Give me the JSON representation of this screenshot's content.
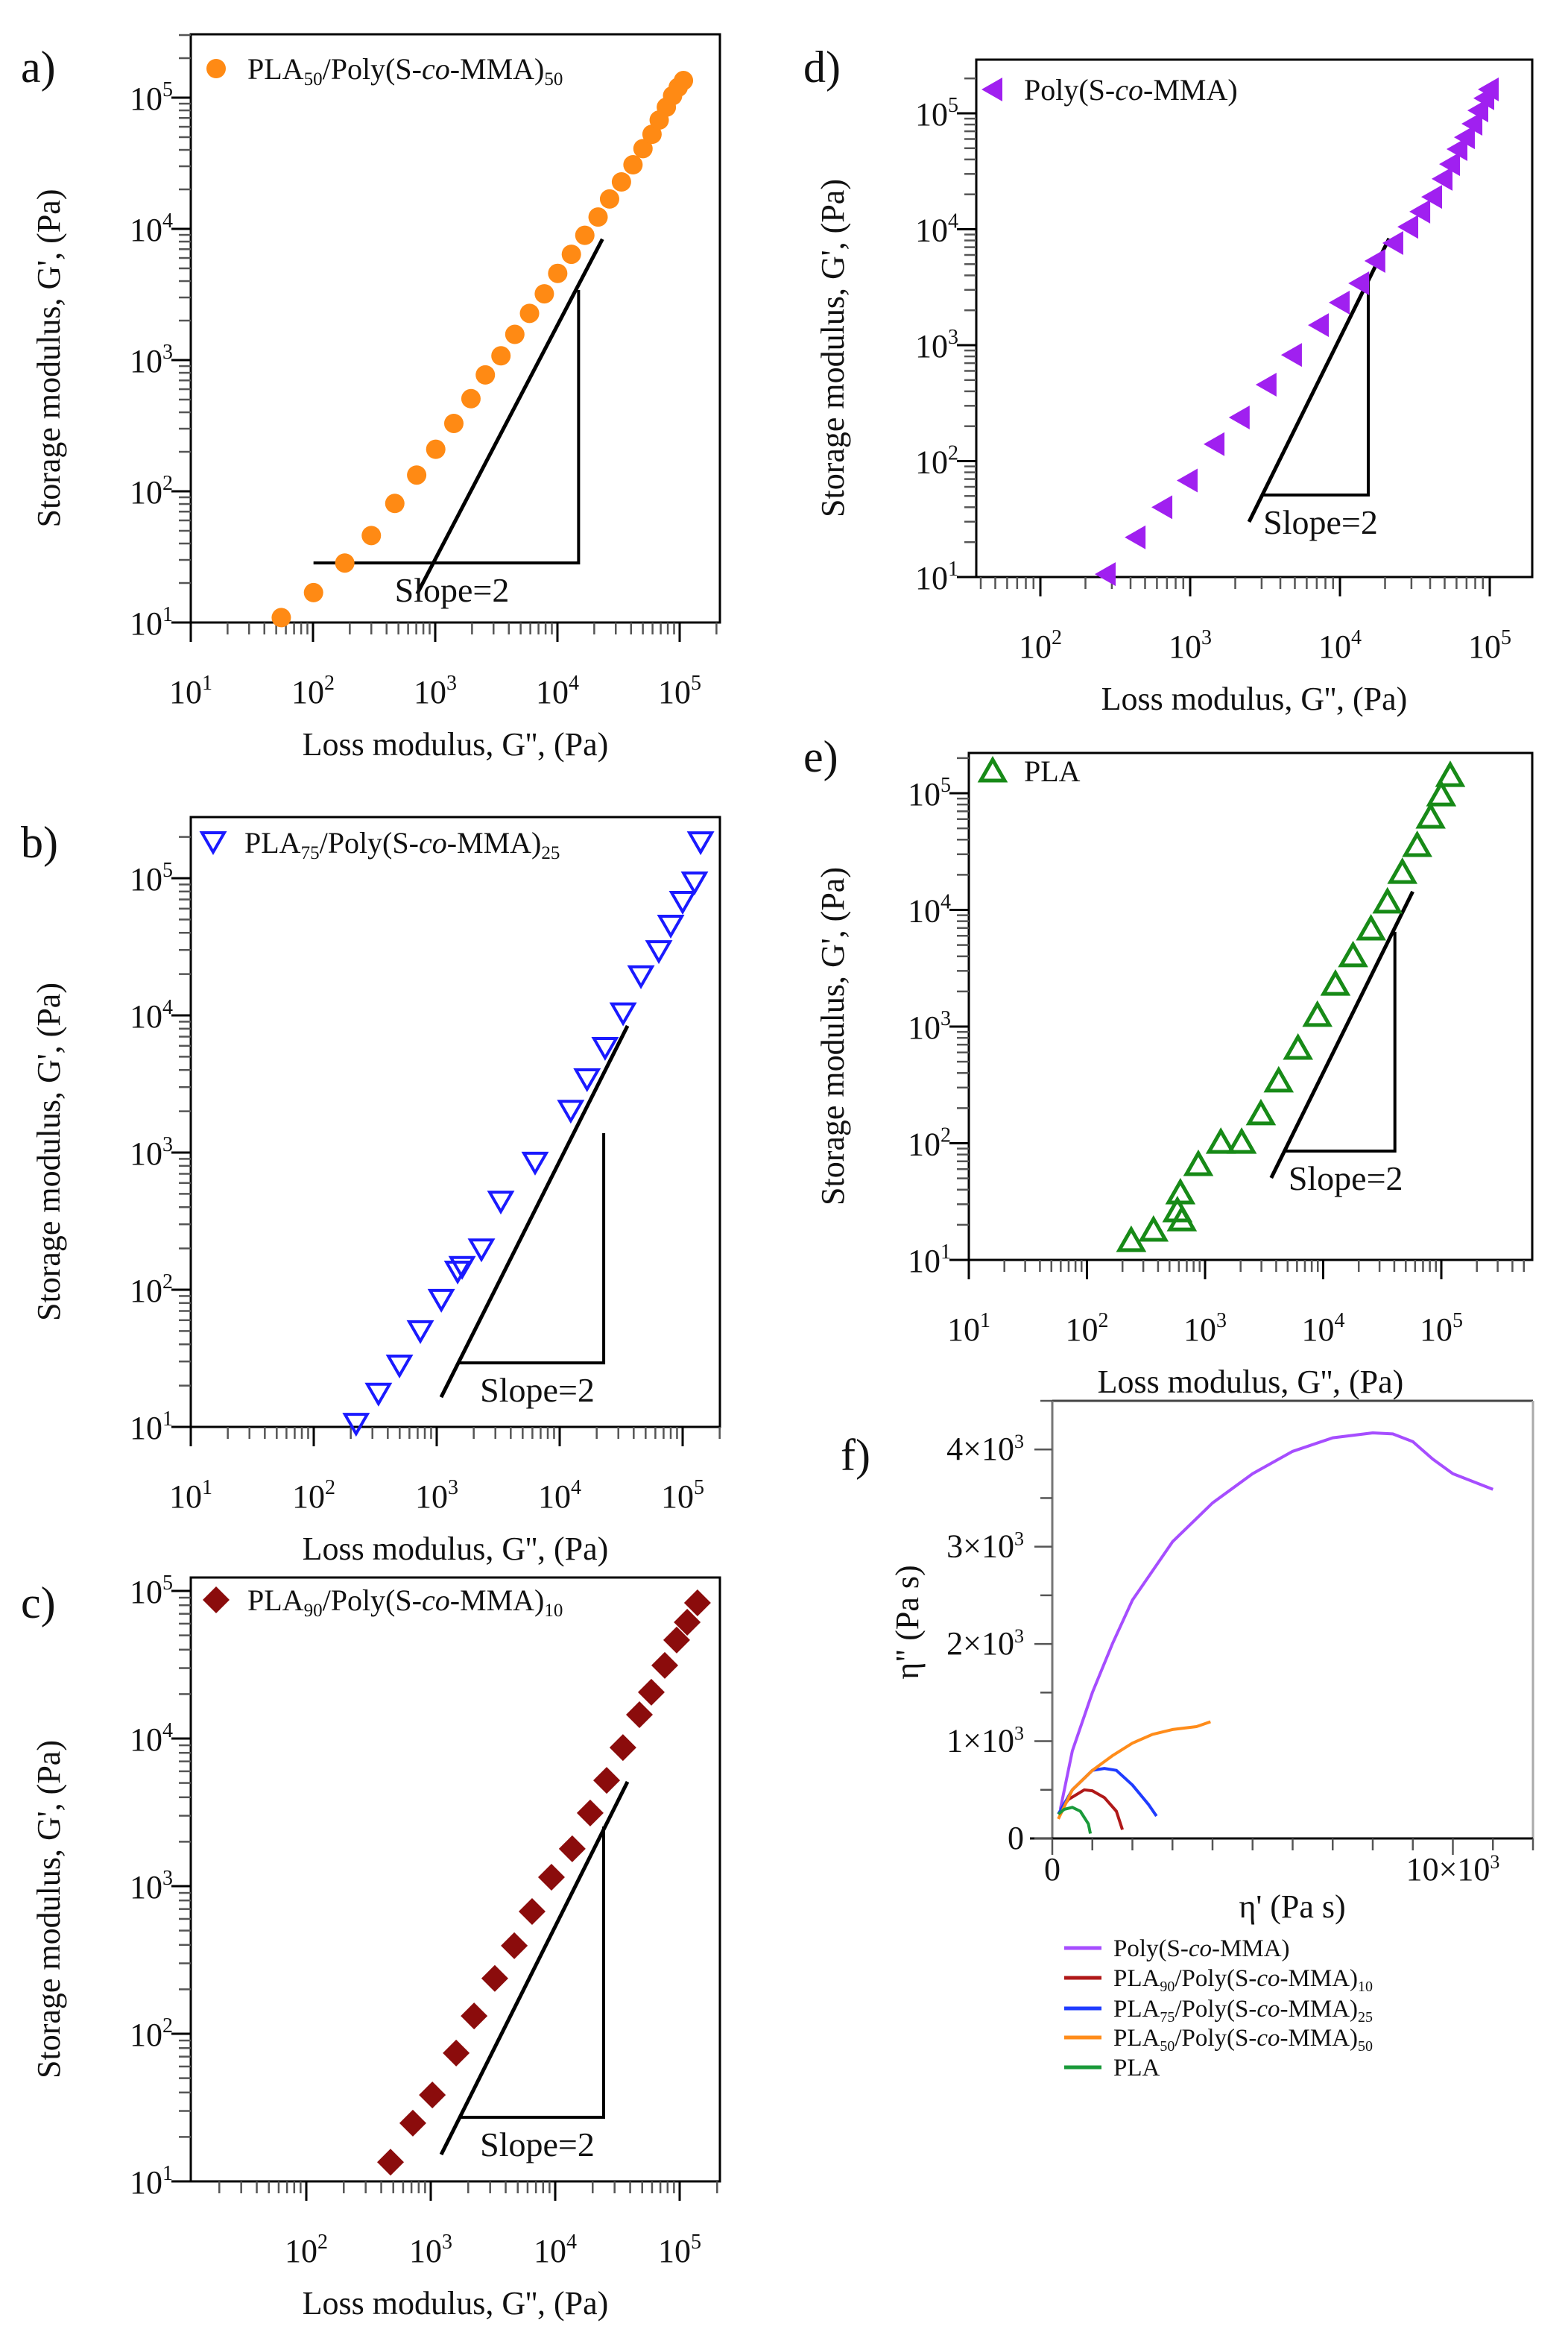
{
  "chart_data": [
    {
      "panel": "a)",
      "type": "scatter",
      "xscale": "log",
      "yscale": "log",
      "xlabel": "Loss modulus, G'', (Pa)",
      "ylabel": "Storage modulus, G', (Pa)",
      "xticks": [
        {
          "base": "10",
          "exp": "1"
        },
        {
          "base": "10",
          "exp": "2"
        },
        {
          "base": "10",
          "exp": "3"
        },
        {
          "base": "10",
          "exp": "4"
        },
        {
          "base": "10",
          "exp": "5"
        }
      ],
      "xtick_values": [
        10.0,
        100.0,
        1000.0,
        10000.0,
        100000.0
      ],
      "yticks": [
        {
          "base": "10",
          "exp": "1"
        },
        {
          "base": "10",
          "exp": "2"
        },
        {
          "base": "10",
          "exp": "3"
        },
        {
          "base": "10",
          "exp": "4"
        },
        {
          "base": "10",
          "exp": "5"
        }
      ],
      "ytick_values": [
        10.0,
        100.0,
        1000.0,
        10000.0,
        100000.0
      ],
      "legend": [
        {
          "t": "PLA"
        },
        {
          "t": "50",
          "s": "sub"
        },
        {
          "t": "/Poly(S-"
        },
        {
          "t": "co",
          "s": "it"
        },
        {
          "t": "-MMA)"
        },
        {
          "t": "50",
          "s": "sub"
        }
      ],
      "marker": "circle",
      "color": "#ff8a14",
      "x": [
        55,
        101,
        182,
        300,
        467,
        705,
        1010,
        1420,
        1960,
        2570,
        3450,
        4480,
        5910,
        7810,
        10050,
        13000,
        16750,
        21500,
        26700,
        33400,
        41500,
        50100,
        59400,
        68000,
        77800,
        87500,
        97300,
        107400
      ],
      "y": [
        10.9,
        16.9,
        28.4,
        46,
        80.8,
        133,
        209,
        329,
        508,
        771,
        1078,
        1570,
        2270,
        3200,
        4580,
        6400,
        8930,
        12300,
        16900,
        22800,
        30800,
        40900,
        52600,
        67500,
        84600,
        103500,
        120000,
        135000
      ],
      "slope_triangle": {
        "label": "Slope=2",
        "line_log10": [
          [
            2.852,
            1.218
          ],
          [
            4.368,
            3.922
          ]
        ],
        "base_y_log10": 1.454,
        "base_x_log10": [
          2.004,
          4.173
        ],
        "top_y_log10": 3.534
      }
    },
    {
      "panel": "b)",
      "type": "scatter",
      "xscale": "log",
      "yscale": "log",
      "xlabel": "Loss modulus, G'', (Pa)",
      "ylabel": "Storage modulus, G', (Pa)",
      "xticks": [
        {
          "base": "10",
          "exp": "1"
        },
        {
          "base": "10",
          "exp": "2"
        },
        {
          "base": "10",
          "exp": "3"
        },
        {
          "base": "10",
          "exp": "4"
        },
        {
          "base": "10",
          "exp": "5"
        }
      ],
      "xtick_values": [
        10.0,
        100.0,
        1000.0,
        10000.0,
        100000.0
      ],
      "yticks": [
        {
          "base": "10",
          "exp": "1"
        },
        {
          "base": "10",
          "exp": "2"
        },
        {
          "base": "10",
          "exp": "3"
        },
        {
          "base": "10",
          "exp": "4"
        },
        {
          "base": "10",
          "exp": "5"
        }
      ],
      "ytick_values": [
        10.0,
        100.0,
        1000.0,
        10000.0,
        100000.0
      ],
      "legend": [
        {
          "t": "PLA"
        },
        {
          "t": "75",
          "s": "sub"
        },
        {
          "t": "/Poly(S-"
        },
        {
          "t": "co",
          "s": "it"
        },
        {
          "t": "-MMA)"
        },
        {
          "t": "25",
          "s": "sub"
        }
      ],
      "marker": "triangle-down-open",
      "color": "#1a1aff",
      "x": [
        221,
        336,
        498,
        736,
        1090,
        1480,
        1610,
        2310,
        3320,
        6310,
        12300,
        16700,
        23400,
        32800,
        45800,
        64000,
        80000,
        100000,
        125000,
        140000
      ],
      "y": [
        10.5,
        17.4,
        27.9,
        49.7,
        84,
        135,
        146,
        196,
        437,
        840,
        2010,
        3410,
        5770,
        10300,
        19200,
        29300,
        44900,
        67000,
        92700,
        182000
      ],
      "slope_triangle": {
        "label": "Slope=2",
        "line_log10": [
          [
            3.036,
            1.217
          ],
          [
            4.552,
            3.924
          ]
        ],
        "base_y_log10": 1.467,
        "base_x_log10": [
          3.182,
          4.358
        ],
        "top_y_log10": 3.141
      }
    },
    {
      "panel": "c)",
      "type": "scatter",
      "xscale": "log",
      "yscale": "log",
      "xlabel": "Loss modulus, G'', (Pa)",
      "ylabel": "Storage modulus, G', (Pa)",
      "xticks": [
        {
          "base": "10",
          "exp": "2"
        },
        {
          "base": "10",
          "exp": "3"
        },
        {
          "base": "10",
          "exp": "4"
        },
        {
          "base": "10",
          "exp": "5"
        }
      ],
      "xtick_values": [
        100.0,
        1000.0,
        10000.0,
        100000.0
      ],
      "yticks": [
        {
          "base": "10",
          "exp": "1"
        },
        {
          "base": "10",
          "exp": "2"
        },
        {
          "base": "10",
          "exp": "3"
        },
        {
          "base": "10",
          "exp": "4"
        },
        {
          "base": "10",
          "exp": "5"
        }
      ],
      "ytick_values": [
        10.0,
        100.0,
        1000.0,
        10000.0,
        100000.0
      ],
      "legend": [
        {
          "t": "PLA"
        },
        {
          "t": "90",
          "s": "sub"
        },
        {
          "t": "/Poly(S-"
        },
        {
          "t": "co",
          "s": "it"
        },
        {
          "t": "-MMA)"
        },
        {
          "t": "10",
          "s": "sub"
        }
      ],
      "marker": "diamond",
      "color": "#8b0c0c",
      "x": [
        475,
        718,
        1030,
        1600,
        2230,
        3270,
        4690,
        6520,
        9330,
        13700,
        19100,
        25900,
        35000,
        47500,
        59200,
        75900,
        94600,
        115000,
        139000
      ],
      "y": [
        13.5,
        24.8,
        38.5,
        74,
        132,
        237,
        395,
        673,
        1150,
        1790,
        3130,
        5210,
        8690,
        14500,
        20600,
        31300,
        46500,
        61400,
        83000
      ],
      "slope_triangle": {
        "label": "Slope=2",
        "line_log10": [
          [
            3.084,
            1.182
          ],
          [
            4.581,
            3.707
          ]
        ],
        "base_y_log10": 1.434,
        "base_x_log10": [
          3.228,
          4.389
        ],
        "top_y_log10": 3.404
      }
    },
    {
      "panel": "d)",
      "type": "scatter",
      "xscale": "log",
      "yscale": "log",
      "xlabel": "Loss modulus, G'', (Pa)",
      "ylabel": "Storage modulus, G', (Pa)",
      "xticks": [
        {
          "base": "10",
          "exp": "2"
        },
        {
          "base": "10",
          "exp": "3"
        },
        {
          "base": "10",
          "exp": "4"
        },
        {
          "base": "10",
          "exp": "5"
        }
      ],
      "xtick_values": [
        100.0,
        1000.0,
        10000.0,
        100000.0
      ],
      "yticks": [
        {
          "base": "10",
          "exp": "1"
        },
        {
          "base": "10",
          "exp": "2"
        },
        {
          "base": "10",
          "exp": "3"
        },
        {
          "base": "10",
          "exp": "4"
        },
        {
          "base": "10",
          "exp": "5"
        }
      ],
      "ytick_values": [
        10.0,
        100.0,
        1000.0,
        10000.0,
        100000.0
      ],
      "legend": [
        {
          "t": "Poly(S-"
        },
        {
          "t": "co",
          "s": "it"
        },
        {
          "t": "-MMA)"
        }
      ],
      "marker": "triangle-left",
      "color": "#a020f0",
      "x": [
        274,
        434,
        655,
        966,
        1460,
        2150,
        3250,
        4800,
        7260,
        10000,
        13500,
        17300,
        22800,
        28700,
        34500,
        41400,
        48600,
        54500,
        61100,
        68500,
        76900,
        84200,
        92300,
        98900
      ],
      "y": [
        10.6,
        22,
        40,
        68,
        140,
        238,
        456,
        824,
        1490,
        2330,
        3420,
        5330,
        7600,
        10500,
        14200,
        19000,
        27200,
        36500,
        49100,
        62200,
        81300,
        106000,
        135000,
        161000
      ],
      "slope_triangle": {
        "label": "Slope=2",
        "line_log10": [
          [
            3.393,
            1.476
          ],
          [
            4.328,
            3.92
          ]
        ],
        "base_y_log10": 1.707,
        "base_x_log10": [
          3.473,
          4.189
        ],
        "top_y_log10": 3.598
      }
    },
    {
      "panel": "e)",
      "type": "scatter",
      "xscale": "log",
      "yscale": "log",
      "xlabel": "Loss modulus, G'', (Pa)",
      "ylabel": "Storage modulus, G', (Pa)",
      "xticks": [
        {
          "base": "10",
          "exp": "1"
        },
        {
          "base": "10",
          "exp": "2"
        },
        {
          "base": "10",
          "exp": "3"
        },
        {
          "base": "10",
          "exp": "4"
        },
        {
          "base": "10",
          "exp": "5"
        }
      ],
      "xtick_values": [
        10.0,
        100.0,
        1000.0,
        10000.0,
        100000.0
      ],
      "yticks": [
        {
          "base": "10",
          "exp": "1"
        },
        {
          "base": "10",
          "exp": "2"
        },
        {
          "base": "10",
          "exp": "3"
        },
        {
          "base": "10",
          "exp": "4"
        },
        {
          "base": "10",
          "exp": "5"
        }
      ],
      "ytick_values": [
        10.0,
        100.0,
        1000.0,
        10000.0,
        100000.0
      ],
      "legend": [
        {
          "t": "PLA"
        }
      ],
      "marker": "triangle-up-open",
      "color": "#178a17",
      "x": [
        237,
        366,
        583,
        618,
        636,
        877,
        1360,
        2040,
        2970,
        4200,
        6120,
        8930,
        12700,
        17900,
        25400,
        35000,
        46800,
        62500,
        81200,
        99800,
        119000
      ],
      "y": [
        14.7,
        18,
        26.4,
        37.6,
        22.1,
        65.8,
        102,
        102,
        179,
        342,
        653,
        1250,
        2310,
        4050,
        6870,
        11700,
        21000,
        35700,
        62500,
        97000,
        142000
      ],
      "slope_triangle": {
        "label": "Slope=2",
        "line_log10": [
          [
            3.56,
            1.703
          ],
          [
            4.758,
            4.157
          ]
        ],
        "base_y_log10": 1.933,
        "base_x_log10": [
          3.673,
          4.607
        ],
        "top_y_log10": 3.812
      }
    },
    {
      "panel": "f)",
      "type": "line",
      "xlabel": "η' (Pa s)",
      "ylabel": "η\" (Pa s)",
      "xlim": [
        0,
        12000
      ],
      "ylim": [
        0,
        4500
      ],
      "xticks": [
        {
          "base": "0",
          "exp": ""
        },
        {
          "base": "10×10",
          "exp": "3"
        }
      ],
      "xtick_values": [
        0,
        10000
      ],
      "yticks": [
        {
          "base": "0",
          "exp": ""
        },
        {
          "base": "1×10",
          "exp": "3"
        },
        {
          "base": "2×10",
          "exp": "3"
        },
        {
          "base": "3×10",
          "exp": "3"
        },
        {
          "base": "4×10",
          "exp": "3"
        }
      ],
      "ytick_values": [
        0,
        1000,
        2000,
        3000,
        4000
      ],
      "legend_position": "bottom",
      "series": [
        {
          "name": [
            {
              "t": "Poly(S-"
            },
            {
              "t": "co",
              "s": "it"
            },
            {
              "t": "-MMA)"
            }
          ],
          "color": "#a64dff",
          "x": [
            200,
            500,
            1000,
            1500,
            2000,
            3000,
            4000,
            5000,
            6000,
            7000,
            8000,
            8500,
            9000,
            9500,
            10000,
            11000
          ],
          "y": [
            300,
            900,
            1500,
            2000,
            2450,
            3050,
            3450,
            3750,
            3980,
            4120,
            4170,
            4160,
            4080,
            3900,
            3750,
            3590
          ]
        },
        {
          "name": [
            {
              "t": "PLA"
            },
            {
              "t": "90",
              "s": "sub"
            },
            {
              "t": "/Poly(S-"
            },
            {
              "t": "co",
              "s": "it"
            },
            {
              "t": "-MMA)"
            },
            {
              "t": "10",
              "s": "sub"
            }
          ],
          "color": "#b01818",
          "x": [
            150,
            400,
            800,
            1000,
            1300,
            1600,
            1750
          ],
          "y": [
            250,
            400,
            500,
            490,
            420,
            280,
            90
          ]
        },
        {
          "name": [
            {
              "t": "PLA"
            },
            {
              "t": "75",
              "s": "sub"
            },
            {
              "t": "/Poly(S-"
            },
            {
              "t": "co",
              "s": "it"
            },
            {
              "t": "-MMA)"
            },
            {
              "t": "25",
              "s": "sub"
            }
          ],
          "color": "#1f3cff",
          "x": [
            150,
            500,
            1000,
            1300,
            1600,
            2000,
            2400,
            2600
          ],
          "y": [
            250,
            500,
            700,
            720,
            700,
            550,
            350,
            230
          ]
        },
        {
          "name": [
            {
              "t": "PLA"
            },
            {
              "t": "50",
              "s": "sub"
            },
            {
              "t": "/Poly(S-"
            },
            {
              "t": "co",
              "s": "it"
            },
            {
              "t": "-MMA)"
            },
            {
              "t": "50",
              "s": "sub"
            }
          ],
          "color": "#ff8c1a",
          "x": [
            150,
            500,
            1000,
            1500,
            2000,
            2500,
            3000,
            3600,
            3950
          ],
          "y": [
            200,
            500,
            700,
            850,
            980,
            1070,
            1120,
            1150,
            1200
          ]
        },
        {
          "name": [
            {
              "t": "PLA"
            }
          ],
          "color": "#1a9a3a",
          "x": [
            150,
            300,
            500,
            700,
            900,
            950
          ],
          "y": [
            250,
            300,
            320,
            280,
            150,
            50
          ]
        }
      ]
    }
  ]
}
